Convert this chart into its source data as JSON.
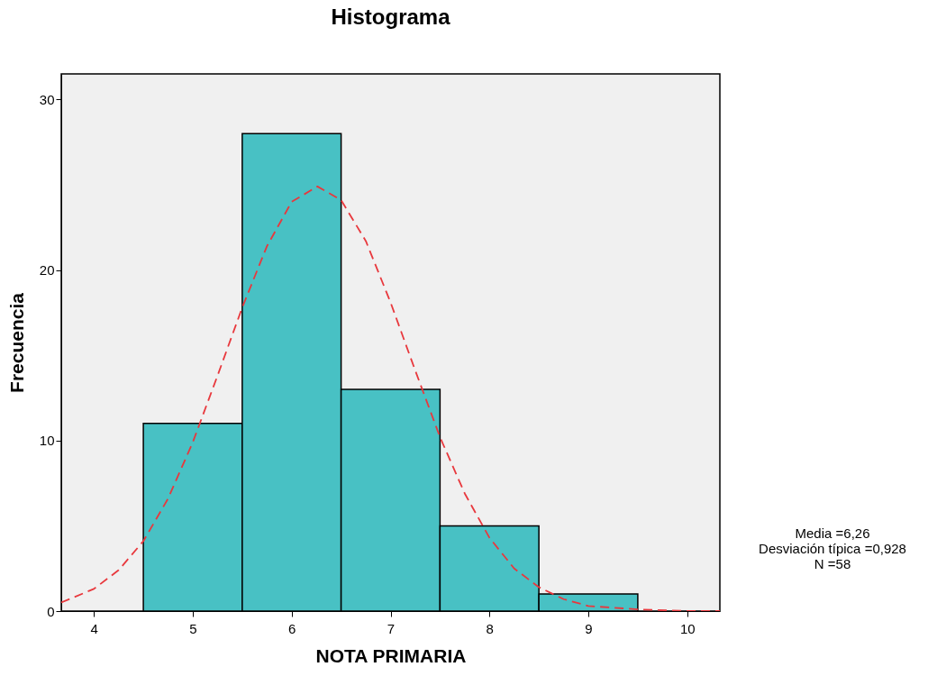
{
  "chart_data": {
    "type": "histogram",
    "title": "Histograma",
    "xlabel": "NOTA PRIMARIA",
    "ylabel": "Frecuencia",
    "bins": [
      4.5,
      5.5,
      6.5,
      7.5,
      8.5,
      9.5
    ],
    "values": [
      11,
      28,
      13,
      5,
      1
    ],
    "color": "#48c1c4",
    "series": [
      {
        "type": "line",
        "color": "#e8383d",
        "line_style": "dashed",
        "x": [
          3.67,
          4.0,
          4.25,
          4.5,
          4.75,
          5.0,
          5.25,
          5.5,
          5.75,
          6.0,
          6.26,
          6.5,
          6.75,
          7.0,
          7.25,
          7.5,
          7.75,
          8.0,
          8.25,
          8.5,
          8.75,
          9.0,
          9.5,
          10.0,
          10.33
        ],
        "values": [
          0.5,
          1.3,
          2.4,
          4.1,
          6.6,
          9.9,
          13.8,
          17.8,
          21.4,
          24.0,
          24.9,
          24.1,
          21.7,
          18.1,
          14.1,
          10.2,
          6.9,
          4.3,
          2.5,
          1.4,
          0.7,
          0.3,
          0.1,
          0,
          0
        ]
      }
    ],
    "xlim": [
      3.67,
      10.33
    ],
    "xticks": [
      4,
      5,
      6,
      7,
      8,
      9,
      10
    ],
    "ylim": [
      0,
      31.5
    ],
    "yticks": [
      0,
      10,
      20,
      30
    ],
    "grid": false,
    "annotations": [
      "Media =6,26",
      "Desviación típica =0,928",
      "N =58"
    ]
  }
}
